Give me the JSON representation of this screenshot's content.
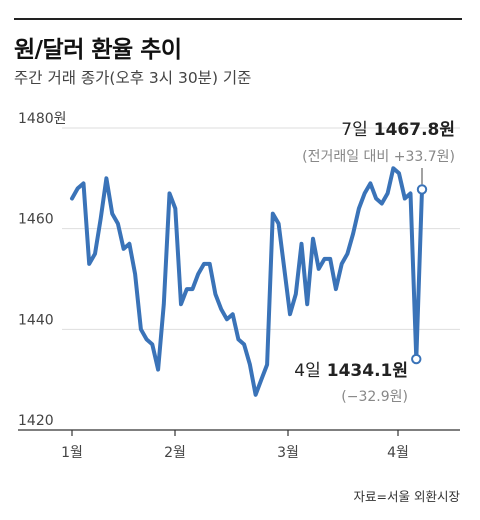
{
  "header": {
    "title": "원/달러 환율 추이",
    "subtitle": "주간 거래 종가(오후 3시 30분) 기준"
  },
  "source": "자료=서울 외환시장",
  "colors": {
    "line": "#3a73b8",
    "grid": "#dedede",
    "axis": "#333333",
    "sub_text": "#888888"
  },
  "annotations": {
    "high": {
      "date_label": "7일",
      "value_label": "1467.8원",
      "change": "(전거래일 대비 +33.7원)"
    },
    "low": {
      "date_label": "4일",
      "value_label": "1434.1원",
      "change": "(−32.9원)"
    }
  },
  "chart_data": {
    "type": "line",
    "title": "원/달러 환율 추이",
    "xlabel": "",
    "ylabel": "",
    "unit": "원",
    "y_ticks": [
      {
        "value": 1420,
        "label": "1420"
      },
      {
        "value": 1440,
        "label": "1440"
      },
      {
        "value": 1460,
        "label": "1460"
      },
      {
        "value": 1480,
        "label": "1480원"
      }
    ],
    "ylim": [
      1420,
      1480
    ],
    "x_ticks": [
      "1월",
      "2월",
      "3월",
      "4월"
    ],
    "grid": true,
    "series": [
      {
        "values": [
          1466,
          1468,
          1469,
          1453,
          1455,
          1462,
          1470,
          1463,
          1461,
          1456,
          1457,
          1451,
          1440,
          1438,
          1437,
          1432,
          1445,
          1467,
          1464,
          1445,
          1448,
          1448,
          1451,
          1453,
          1453,
          1447,
          1444,
          1442,
          1443,
          1438,
          1437,
          1433,
          1427,
          1430,
          1433,
          1463,
          1461,
          1452,
          1443,
          1447,
          1457,
          1445,
          1458,
          1452,
          1454,
          1454,
          1448,
          1453,
          1455,
          1459,
          1464,
          1467,
          1469,
          1466,
          1465,
          1467,
          1472,
          1471,
          1466,
          1467,
          1434.1,
          1467.8
        ]
      }
    ]
  }
}
